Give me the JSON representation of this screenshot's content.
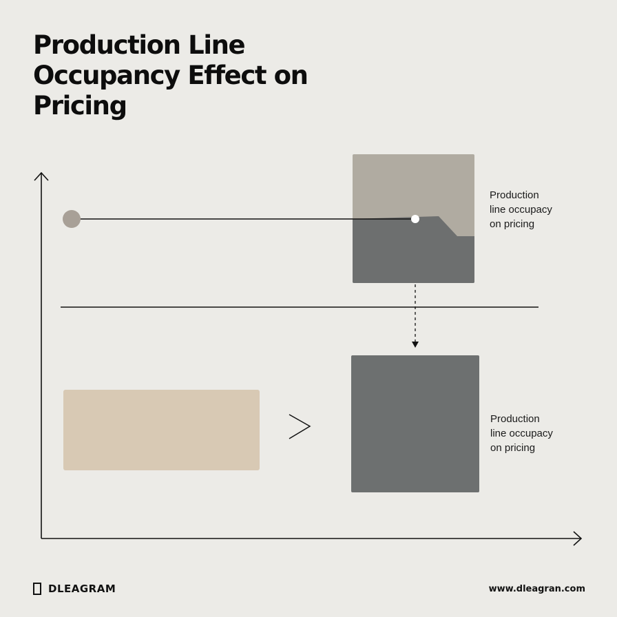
{
  "title": "Production Line Occupancy Effect on Pricing",
  "labels": {
    "top": [
      "Production",
      "line occupacy",
      "on pricing"
    ],
    "bottom": [
      "Production",
      "line occupacy",
      "on pricing"
    ]
  },
  "brand": {
    "name": "DLEAGRAM",
    "website": "www.dleagran.com",
    "icon": "rectangle-outline-icon"
  },
  "colors": {
    "background": "#ecebe7",
    "top_box_upper": "#b0aba1",
    "top_box_lower": "#6d6f6f",
    "bottom_box": "#6d7070",
    "beige_box": "#d8c9b4",
    "marker_dot": "#a8a097",
    "ink": "#111111"
  },
  "icons": {
    "y_axis_arrow": "arrow-up-icon",
    "x_axis_arrow": "arrow-right-icon",
    "comparison": "chevron-right-icon",
    "flow": "dashed-arrow-down-icon"
  }
}
